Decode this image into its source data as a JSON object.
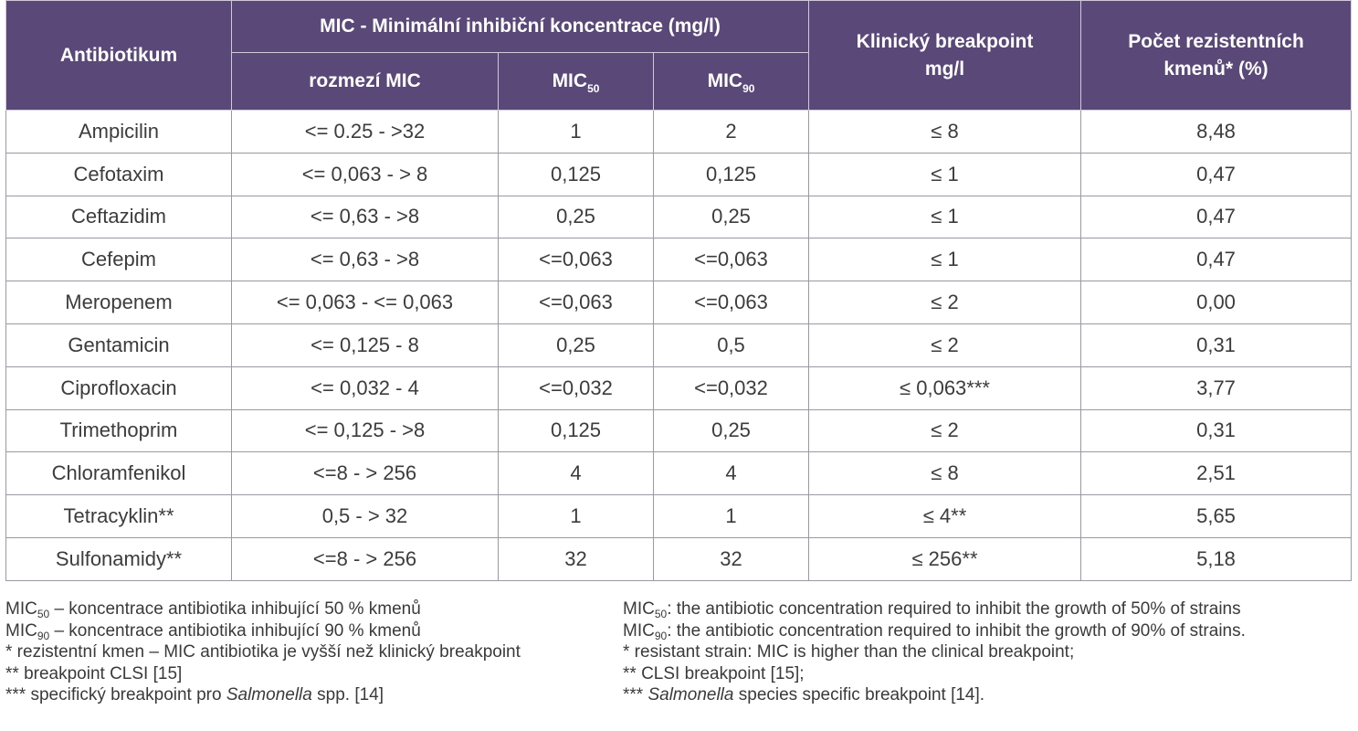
{
  "header": {
    "antibiotic": "Antibiotikum",
    "mic_group": "MIC - Minimální inhibiční koncentrace (mg/l)",
    "range": "rozmezí MIC",
    "mic50_base": "MIC",
    "mic50_sub": "50",
    "mic90_base": "MIC",
    "mic90_sub": "90",
    "breakpoint_line1": "Klinický breakpoint",
    "breakpoint_line2": "mg/l",
    "resistant_line1": "Počet rezistentních",
    "resistant_line2": "kmenů* (%)"
  },
  "rows": [
    {
      "antibiotic": "Ampicilin",
      "range": "<= 0.25 - >32",
      "mic50": "1",
      "mic90": "2",
      "breakpoint": "≤ 8",
      "resistant": "8,48"
    },
    {
      "antibiotic": "Cefotaxim",
      "range": "<= 0,063 - > 8",
      "mic50": "0,125",
      "mic90": "0,125",
      "breakpoint": "≤ 1",
      "resistant": "0,47"
    },
    {
      "antibiotic": "Ceftazidim",
      "range": "<= 0,63 - >8",
      "mic50": "0,25",
      "mic90": "0,25",
      "breakpoint": "≤ 1",
      "resistant": "0,47"
    },
    {
      "antibiotic": "Cefepim",
      "range": "<= 0,63 - >8",
      "mic50": "<=0,063",
      "mic90": "<=0,063",
      "breakpoint": "≤ 1",
      "resistant": "0,47"
    },
    {
      "antibiotic": "Meropenem",
      "range": "<= 0,063 - <= 0,063",
      "mic50": "<=0,063",
      "mic90": "<=0,063",
      "breakpoint": "≤ 2",
      "resistant": "0,00"
    },
    {
      "antibiotic": "Gentamicin",
      "range": "<= 0,125 - 8",
      "mic50": "0,25",
      "mic90": "0,5",
      "breakpoint": "≤ 2",
      "resistant": "0,31"
    },
    {
      "antibiotic": "Ciprofloxacin",
      "range": "<= 0,032 - 4",
      "mic50": "<=0,032",
      "mic90": "<=0,032",
      "breakpoint": "≤ 0,063***",
      "resistant": "3,77"
    },
    {
      "antibiotic": "Trimethoprim",
      "range": "<= 0,125 - >8",
      "mic50": "0,125",
      "mic90": "0,25",
      "breakpoint": "≤ 2",
      "resistant": "0,31"
    },
    {
      "antibiotic": "Chloramfenikol",
      "range": "<=8 - > 256",
      "mic50": "4",
      "mic90": "4",
      "breakpoint": "≤ 8",
      "resistant": "2,51"
    },
    {
      "antibiotic": "Tetracyklin**",
      "range": "0,5 - > 32",
      "mic50": "1",
      "mic90": "1",
      "breakpoint": "≤ 4**",
      "resistant": "5,65"
    },
    {
      "antibiotic": "Sulfonamidy**",
      "range": "<=8 - > 256",
      "mic50": "32",
      "mic90": "32",
      "breakpoint": "≤ 256**",
      "resistant": "5,18"
    }
  ],
  "notes_cz": {
    "mic50_base": "MIC",
    "mic50_sub": "50",
    "mic50_text": " – koncentrace antibiotika inhibující 50 % kmenů",
    "mic90_base": "MIC",
    "mic90_sub": "90",
    "mic90_text": " – koncentrace antibiotika inhibující 90 % kmenů",
    "resistant": "* rezistentní kmen – MIC antibiotika je vyšší než klinický breakpoint",
    "clsi": "** breakpoint CLSI [15]",
    "specific_pre": "*** specifický breakpoint pro ",
    "specific_it": "Salmonella",
    "specific_post": " spp. [14]"
  },
  "notes_en": {
    "mic50_base": "MIC",
    "mic50_sub": "50",
    "mic50_text": ": the antibiotic concentration required to inhibit the growth of 50% of strains",
    "mic90_base": "MIC",
    "mic90_sub": "90",
    "mic90_text": ": the antibiotic concentration required to inhibit the growth of 90% of strains.",
    "resistant": "* resistant strain: MIC is higher than the clinical breakpoint;",
    "clsi": "** CLSI breakpoint [15];",
    "specific_pre": "*** ",
    "specific_it": "Salmonella",
    "specific_post": " species specific breakpoint [14]."
  },
  "colors": {
    "header_bg": "#594878",
    "header_text": "#ffffff",
    "border": "#9b98a3"
  }
}
